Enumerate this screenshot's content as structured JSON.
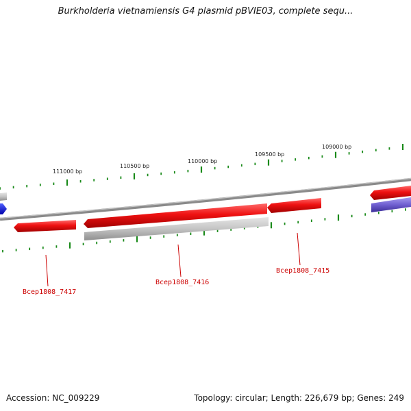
{
  "title": "Burkholderia vietnamiensis G4 plasmid pBVIE03, complete sequ...",
  "footer": {
    "accession": "Accession: NC_009229",
    "summary": "Topology: circular; Length: 226,679 bp; Genes: 249"
  },
  "scale_labels": [
    "111000 bp",
    "110500 bp",
    "110000 bp",
    "109500 bp",
    "109000 bp"
  ],
  "genes": [
    {
      "name": "Bcep1808_7417"
    },
    {
      "name": "Bcep1808_7416"
    },
    {
      "name": "Bcep1808_7415"
    }
  ],
  "colors": {
    "forward_gene": "#ee1111",
    "reverse_gene": "#bbbbbb",
    "other_gene": "#7060d0",
    "blue_gene": "#0000ee",
    "backbone": "#888888",
    "tick": "#1a8a1a",
    "gene_label": "#cc0000"
  }
}
